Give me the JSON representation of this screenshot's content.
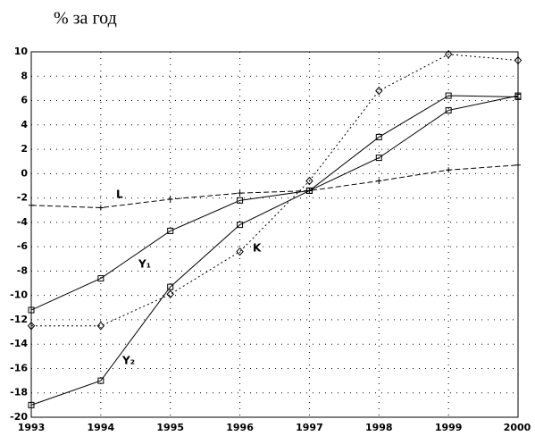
{
  "chart_data": {
    "type": "line",
    "title": "% за год",
    "x": [
      1993,
      1994,
      1995,
      1996,
      1997,
      1998,
      1999,
      2000
    ],
    "xlim": [
      1993,
      2000
    ],
    "xticks": [
      1993,
      1994,
      1995,
      1996,
      1997,
      1998,
      1999,
      2000
    ],
    "ylim": [
      -20,
      10
    ],
    "yticks": [
      -20,
      -18,
      -16,
      -14,
      -12,
      -10,
      -8,
      -6,
      -4,
      -2,
      0,
      2,
      4,
      6,
      8,
      10
    ],
    "grid": true,
    "series": [
      {
        "name": "Y₁",
        "color": "#000000",
        "style": "solid",
        "marker": "square",
        "values": [
          -11.2,
          -8.6,
          -4.7,
          -2.2,
          -1.4,
          1.3,
          5.2,
          6.4
        ]
      },
      {
        "name": "Y₂",
        "color": "#000000",
        "style": "solid",
        "marker": "square",
        "values": [
          -19,
          -17,
          -9.3,
          -4.2,
          -1.4,
          3.0,
          6.4,
          6.3
        ]
      },
      {
        "name": "K",
        "color": "#000000",
        "style": "dotted",
        "marker": "diamond",
        "values": [
          -12.5,
          -12.5,
          -9.9,
          -6.4,
          -0.6,
          6.8,
          9.8,
          9.3
        ]
      },
      {
        "name": "L",
        "color": "#000000",
        "style": "dashed",
        "marker": "cross",
        "values": [
          -2.6,
          -2.8,
          -2.1,
          -1.6,
          -1.4,
          -0.6,
          0.3,
          0.7
        ]
      }
    ]
  }
}
